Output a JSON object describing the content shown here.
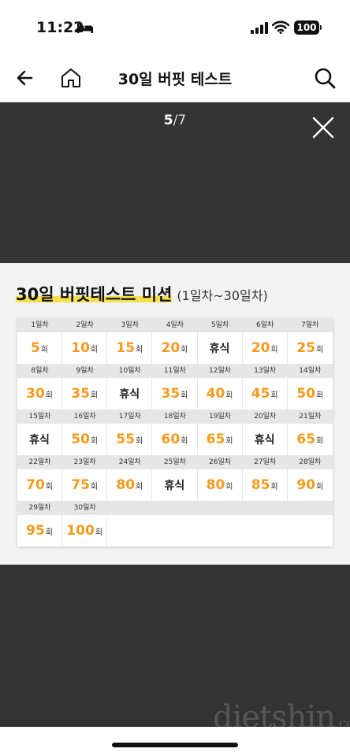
{
  "status": {
    "time": "11:22",
    "battery": "100"
  },
  "nav": {
    "title": "30일 버핏 테스트"
  },
  "viewer": {
    "current_page": "5",
    "separator": "/",
    "total_pages": "7"
  },
  "slide": {
    "title": "30일 버핏테스트 미션",
    "subtitle": "(1일차~30일차)",
    "unit": "회",
    "rest_label": "휴식",
    "rows": [
      {
        "days": [
          "1일차",
          "2일차",
          "3일차",
          "4일차",
          "5일차",
          "6일차",
          "7일차"
        ],
        "values": [
          "5",
          "10",
          "15",
          "20",
          "휴식",
          "20",
          "25"
        ]
      },
      {
        "days": [
          "8일차",
          "9일차",
          "10일차",
          "11일차",
          "12일차",
          "13일차",
          "14일차"
        ],
        "values": [
          "30",
          "35",
          "휴식",
          "35",
          "40",
          "45",
          "50"
        ]
      },
      {
        "days": [
          "15일차",
          "16일차",
          "17일차",
          "18일차",
          "19일차",
          "20일차",
          "21일차"
        ],
        "values": [
          "휴식",
          "50",
          "55",
          "60",
          "65",
          "휴식",
          "65"
        ]
      },
      {
        "days": [
          "22일차",
          "23일차",
          "24일차",
          "25일차",
          "26일차",
          "27일차",
          "28일차"
        ],
        "values": [
          "70",
          "75",
          "80",
          "휴식",
          "80",
          "85",
          "90"
        ]
      },
      {
        "days": [
          "29일차",
          "30일차"
        ],
        "values": [
          "95",
          "100"
        ]
      }
    ]
  },
  "watermark": {
    "text": "dietshin",
    "suffix": ".com"
  },
  "icons": {
    "back": "arrow-left-icon",
    "home": "home-icon",
    "search": "search-icon",
    "close": "close-icon",
    "bed": "bed-icon",
    "signal": "signal-icon",
    "wifi": "wifi-icon"
  },
  "colors": {
    "accent": "#f59a1b",
    "highlight": "#f6e04a",
    "viewer_bg": "#333333"
  }
}
